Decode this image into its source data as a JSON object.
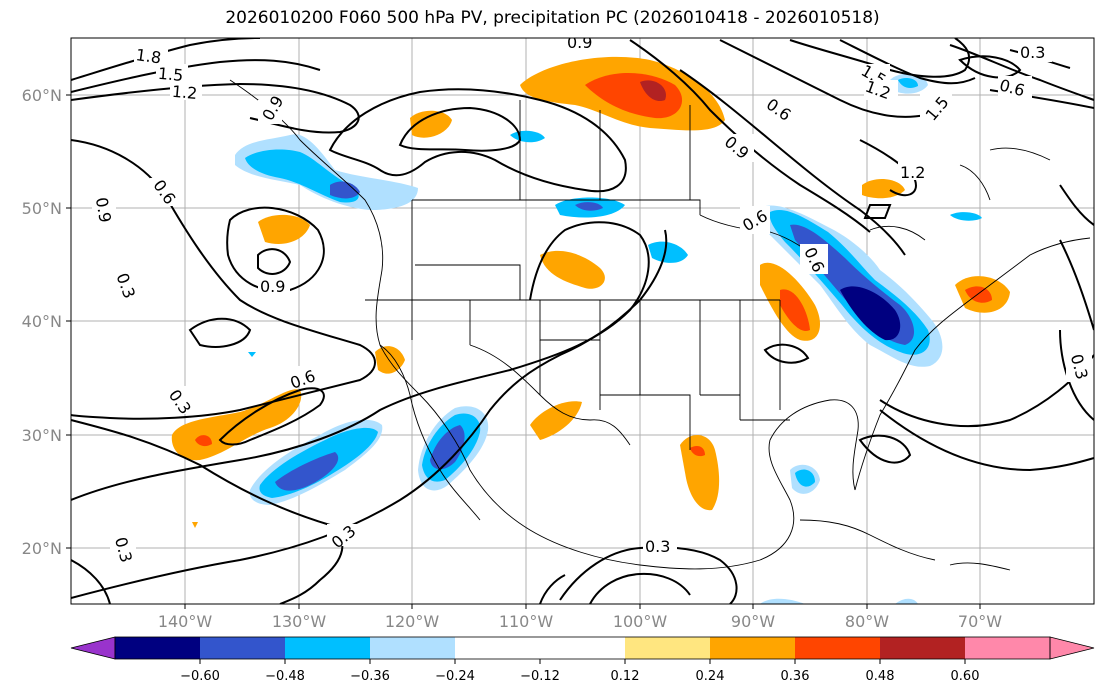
{
  "title": "2026010200 F060 500 hPa PV, precipitation PC (2026010418 - 2026010518)",
  "map": {
    "lat_labels": [
      "60°N",
      "50°N",
      "40°N",
      "30°N",
      "20°N"
    ],
    "lon_labels": [
      "140°W",
      "130°W",
      "120°W",
      "110°W",
      "100°W",
      "90°W",
      "80°W",
      "70°W"
    ],
    "contour_labels": [
      "1.8",
      "1.5",
      "1.2",
      "0.9",
      "0.6",
      "0.9",
      "0.3",
      "0.9",
      "0.6",
      "0.3",
      "0.3",
      "0.3",
      "0.9",
      "0.6",
      "0.9",
      "0.6",
      "1.2",
      "1.5",
      "0.3",
      "0.6",
      "1.5",
      "1.2",
      "0.6",
      "0.3"
    ]
  },
  "colorbar": {
    "ticks": [
      "−0.60",
      "−0.48",
      "−0.36",
      "−0.24",
      "−0.12",
      "0.12",
      "0.24",
      "0.36",
      "0.48",
      "0.60"
    ],
    "colors": [
      "#9933cc",
      "#000080",
      "#3355cc",
      "#00bfff",
      "#b0e0ff",
      "#ffffff",
      "#ffe680",
      "#ffa500",
      "#ff4500",
      "#b22222",
      "#ff88aa"
    ]
  }
}
